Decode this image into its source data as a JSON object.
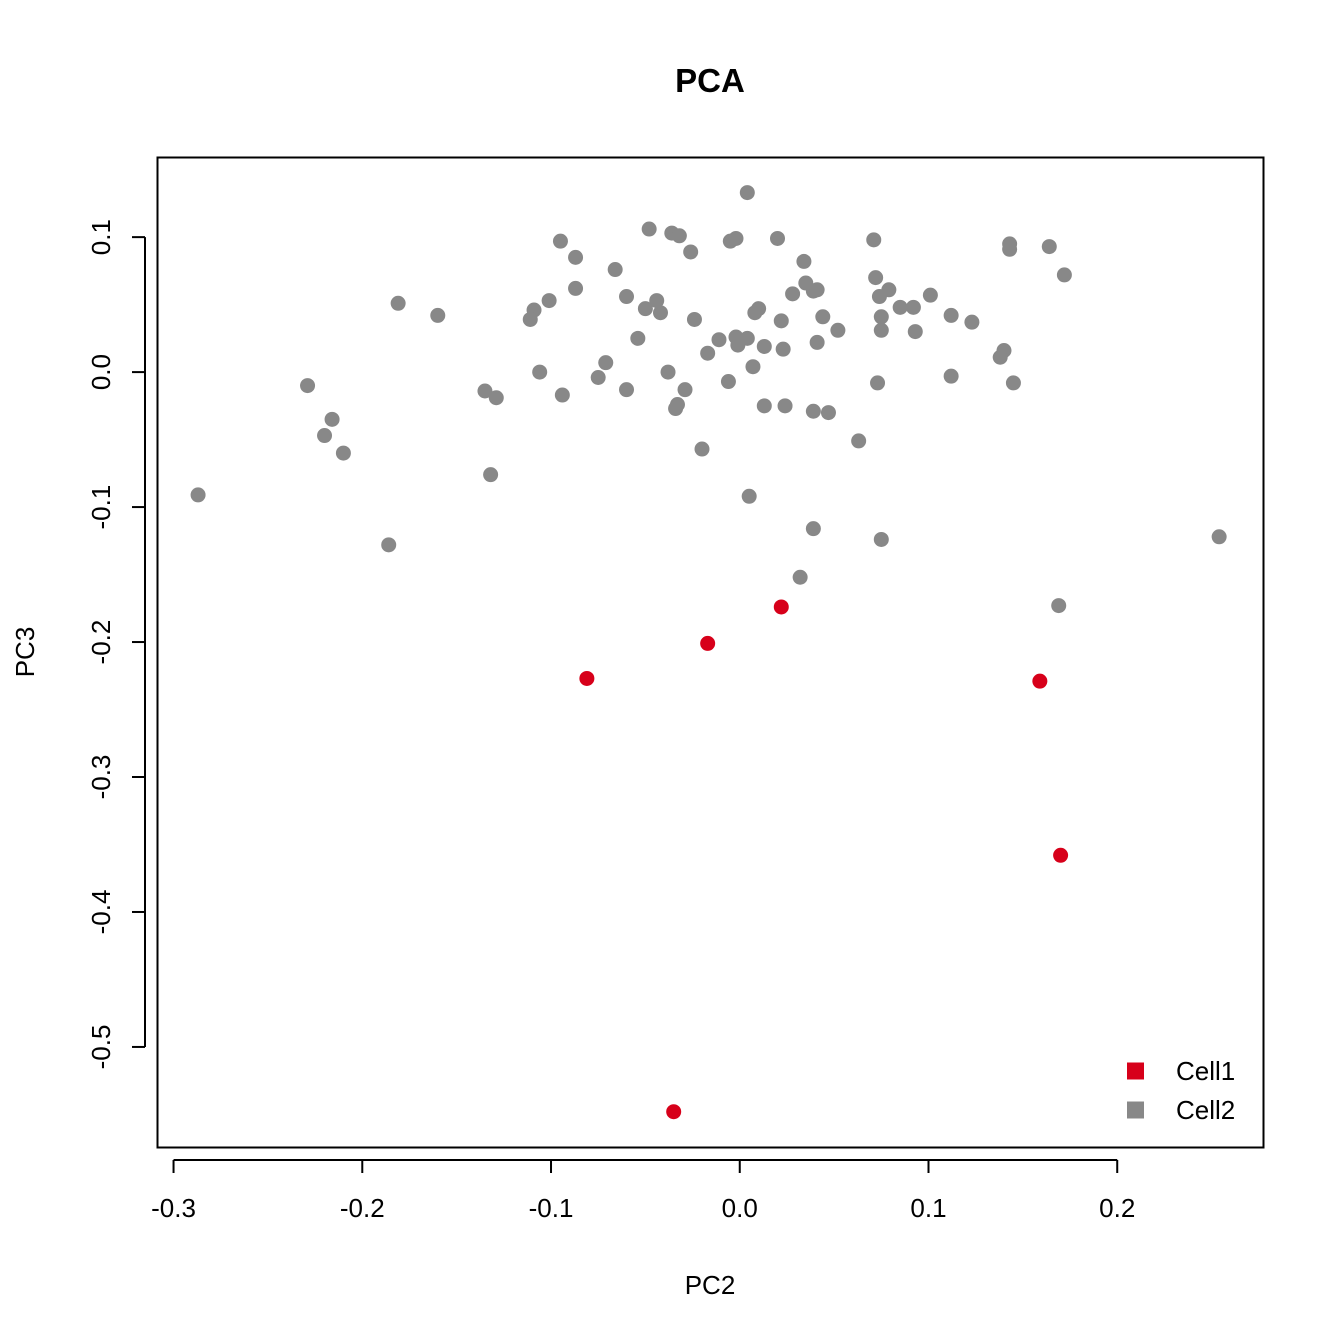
{
  "chart_data": {
    "type": "scatter",
    "title": "PCA",
    "xlabel": "PC2",
    "ylabel": "PC3",
    "xlim": [
      -0.3085,
      0.2775
    ],
    "ylim": [
      -0.5745,
      0.159
    ],
    "x_ticks": [
      -0.3,
      -0.2,
      -0.1,
      0.0,
      0.1,
      0.2
    ],
    "x_tick_labels": [
      "-0.3",
      "-0.2",
      "-0.1",
      "0.0",
      "0.1",
      "0.2"
    ],
    "y_ticks": [
      0.1,
      0.0,
      -0.1,
      -0.2,
      -0.3,
      -0.4,
      -0.5
    ],
    "y_tick_labels": [
      "0.1",
      "0.0",
      "-0.1",
      "-0.2",
      "-0.3",
      "-0.4",
      "-0.5"
    ],
    "grid": false,
    "legend_position": "bottom-right",
    "series": [
      {
        "name": "Cell1",
        "color": "#D7001A",
        "points": [
          [
            0.022,
            -0.174
          ],
          [
            -0.017,
            -0.201
          ],
          [
            -0.081,
            -0.227
          ],
          [
            0.159,
            -0.229
          ],
          [
            0.17,
            -0.358
          ],
          [
            -0.035,
            -0.548
          ]
        ]
      },
      {
        "name": "Cell2",
        "color": "#888888",
        "points": [
          [
            0.004,
            0.133
          ],
          [
            -0.048,
            0.106
          ],
          [
            -0.036,
            0.103
          ],
          [
            -0.032,
            0.101
          ],
          [
            -0.095,
            0.097
          ],
          [
            -0.005,
            0.097
          ],
          [
            -0.002,
            0.099
          ],
          [
            0.02,
            0.099
          ],
          [
            0.071,
            0.098
          ],
          [
            0.143,
            0.095
          ],
          [
            0.143,
            0.091
          ],
          [
            0.164,
            0.093
          ],
          [
            -0.026,
            0.089
          ],
          [
            -0.087,
            0.085
          ],
          [
            0.034,
            0.082
          ],
          [
            -0.066,
            0.076
          ],
          [
            0.172,
            0.072
          ],
          [
            0.072,
            0.07
          ],
          [
            0.035,
            0.066
          ],
          [
            0.039,
            0.06
          ],
          [
            0.041,
            0.061
          ],
          [
            0.079,
            0.061
          ],
          [
            -0.087,
            0.062
          ],
          [
            0.028,
            0.058
          ],
          [
            0.074,
            0.056
          ],
          [
            0.101,
            0.057
          ],
          [
            -0.06,
            0.056
          ],
          [
            -0.044,
            0.053
          ],
          [
            -0.101,
            0.053
          ],
          [
            -0.181,
            0.051
          ],
          [
            -0.109,
            0.046
          ],
          [
            -0.05,
            0.047
          ],
          [
            0.01,
            0.047
          ],
          [
            0.085,
            0.048
          ],
          [
            0.092,
            0.048
          ],
          [
            0.008,
            0.044
          ],
          [
            -0.042,
            0.044
          ],
          [
            -0.16,
            0.042
          ],
          [
            0.112,
            0.042
          ],
          [
            0.044,
            0.041
          ],
          [
            0.075,
            0.041
          ],
          [
            -0.111,
            0.039
          ],
          [
            -0.024,
            0.039
          ],
          [
            0.022,
            0.038
          ],
          [
            0.123,
            0.037
          ],
          [
            0.052,
            0.031
          ],
          [
            0.075,
            0.031
          ],
          [
            0.093,
            0.03
          ],
          [
            -0.054,
            0.025
          ],
          [
            -0.002,
            0.026
          ],
          [
            0.004,
            0.025
          ],
          [
            -0.011,
            0.024
          ],
          [
            0.041,
            0.022
          ],
          [
            -0.001,
            0.02
          ],
          [
            0.013,
            0.019
          ],
          [
            0.023,
            0.017
          ],
          [
            0.14,
            0.016
          ],
          [
            -0.017,
            0.014
          ],
          [
            0.138,
            0.011
          ],
          [
            -0.071,
            0.007
          ],
          [
            0.007,
            0.004
          ],
          [
            -0.106,
            0.0
          ],
          [
            -0.038,
            0.0
          ],
          [
            -0.075,
            -0.004
          ],
          [
            -0.006,
            -0.007
          ],
          [
            0.112,
            -0.003
          ],
          [
            0.073,
            -0.008
          ],
          [
            0.145,
            -0.008
          ],
          [
            -0.229,
            -0.01
          ],
          [
            -0.06,
            -0.013
          ],
          [
            -0.029,
            -0.013
          ],
          [
            -0.135,
            -0.014
          ],
          [
            -0.129,
            -0.019
          ],
          [
            -0.094,
            -0.017
          ],
          [
            -0.033,
            -0.024
          ],
          [
            -0.034,
            -0.027
          ],
          [
            0.013,
            -0.025
          ],
          [
            0.024,
            -0.025
          ],
          [
            0.039,
            -0.029
          ],
          [
            0.047,
            -0.03
          ],
          [
            -0.216,
            -0.035
          ],
          [
            -0.22,
            -0.047
          ],
          [
            0.063,
            -0.051
          ],
          [
            -0.02,
            -0.057
          ],
          [
            -0.21,
            -0.06
          ],
          [
            -0.132,
            -0.076
          ],
          [
            -0.287,
            -0.091
          ],
          [
            0.005,
            -0.092
          ],
          [
            0.039,
            -0.116
          ],
          [
            0.075,
            -0.124
          ],
          [
            0.254,
            -0.122
          ],
          [
            -0.186,
            -0.128
          ],
          [
            0.032,
            -0.152
          ],
          [
            0.169,
            -0.173
          ]
        ]
      }
    ]
  }
}
